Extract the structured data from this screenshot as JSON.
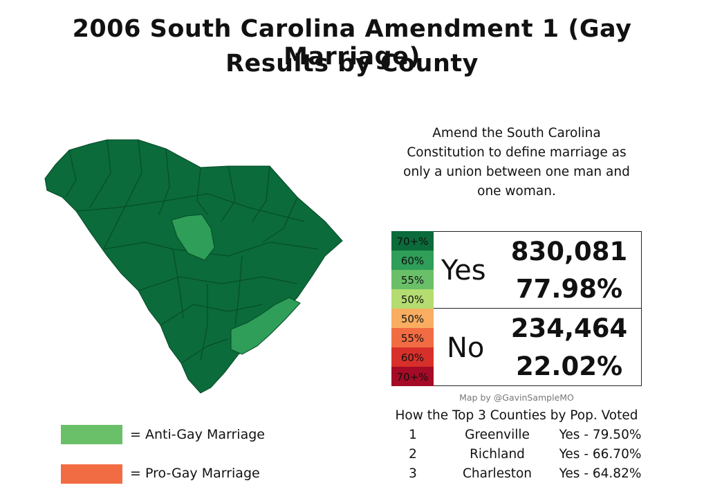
{
  "header": {
    "title_lines": [
      "2006 South Carolina Amendment 1 (Gay Marriage)",
      "Results by County"
    ]
  },
  "question": {
    "lines": [
      "Amend the South Carolina",
      "Constitution to define marriage as",
      "only a union between one man and",
      "one woman."
    ]
  },
  "results": {
    "yes": {
      "label": "Yes",
      "votes": "830,081",
      "percent": "77.98%",
      "scale": [
        "70+%",
        "60%",
        "55%",
        "50%"
      ]
    },
    "no": {
      "label": "No",
      "votes": "234,464",
      "percent": "22.02%",
      "scale": [
        "50%",
        "55%",
        "60%",
        "70+%"
      ]
    }
  },
  "credit": "Map by @GavinSampleMO",
  "top_counties": {
    "heading": "How the Top 3 Counties by Pop. Voted",
    "rows": [
      [
        "1",
        "Greenville",
        "Yes - 79.50%"
      ],
      [
        "2",
        "Richland",
        "Yes - 66.70%"
      ],
      [
        "3",
        "Charleston",
        "Yes - 64.82%"
      ]
    ]
  },
  "key": [
    {
      "symbol": "=",
      "label": "Anti-Gay Marriage"
    },
    {
      "symbol": "=",
      "label": "Pro-Gay Marriage"
    }
  ]
}
